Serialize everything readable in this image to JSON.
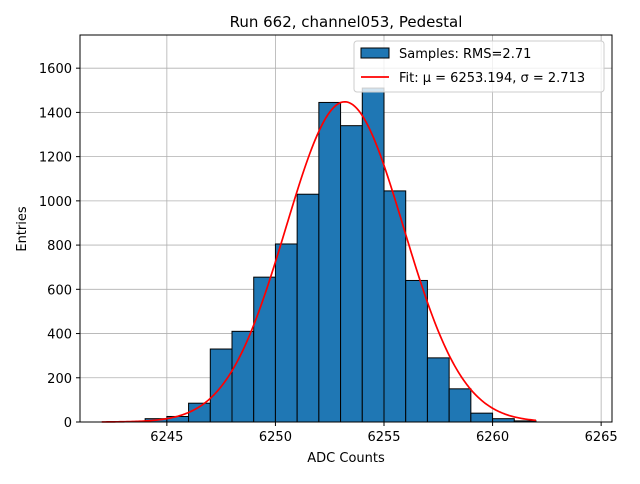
{
  "chart_data": {
    "type": "bar",
    "title": "Run 662, channel053, Pedestal",
    "xlabel": "ADC Counts",
    "ylabel": "Entries",
    "xlim": [
      6241,
      6265.5
    ],
    "ylim": [
      0,
      1750
    ],
    "xticks": [
      6245,
      6250,
      6255,
      6260,
      6265
    ],
    "yticks": [
      0,
      200,
      400,
      600,
      800,
      1000,
      1200,
      1400,
      1600
    ],
    "grid": true,
    "legend_position": "top-right",
    "bin_width": 1,
    "bin_lefts": [
      6242,
      6243,
      6244,
      6245,
      6246,
      6247,
      6248,
      6249,
      6250,
      6251,
      6252,
      6253,
      6254,
      6255,
      6256,
      6257,
      6258,
      6259,
      6260,
      6261,
      6262
    ],
    "counts": [
      0,
      2,
      15,
      25,
      85,
      330,
      410,
      655,
      805,
      1030,
      1445,
      1340,
      1510,
      1045,
      640,
      290,
      150,
      40,
      15,
      5,
      0
    ],
    "fit": {
      "mu": 6253.194,
      "sigma": 2.713,
      "amplitude": 1448,
      "x_range": [
        6242,
        6262
      ]
    },
    "series": [
      {
        "name": "Samples: RMS=2.71",
        "kind": "histogram",
        "color": "#1f77b4",
        "edge_color": "#000000"
      },
      {
        "name": "Fit: μ = 6253.194, σ = 2.713",
        "kind": "line",
        "color": "#ff0000"
      }
    ]
  }
}
